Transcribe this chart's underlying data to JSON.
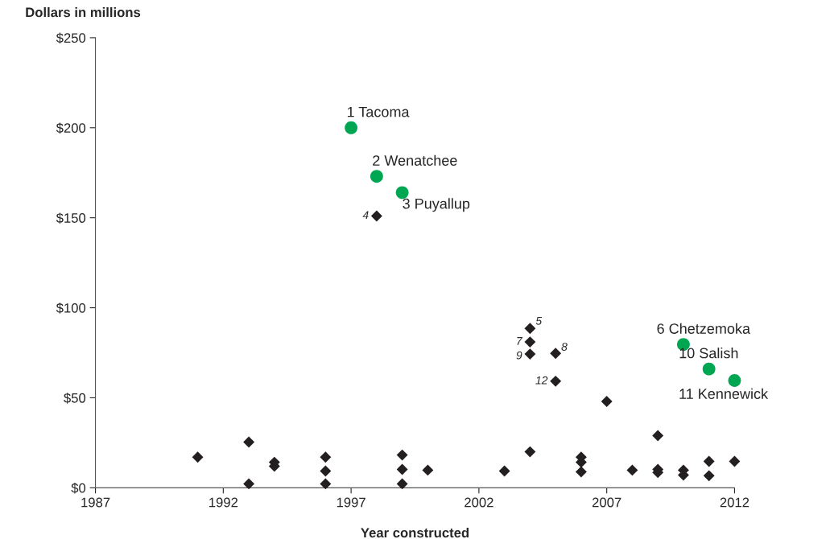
{
  "chart_data": {
    "type": "scatter",
    "xlabel": "Year constructed",
    "ylabel": "Dollars in millions",
    "xlim": [
      1987,
      2012
    ],
    "xticks": [
      1987,
      1992,
      1997,
      2002,
      2007,
      2012
    ],
    "ylim": [
      0,
      250
    ],
    "yticks": [
      {
        "value": 0,
        "label": "$0"
      },
      {
        "value": 50,
        "label": "$50"
      },
      {
        "value": 100,
        "label": "$100"
      },
      {
        "value": 150,
        "label": "$150"
      },
      {
        "value": 200,
        "label": "$200"
      },
      {
        "value": 250,
        "label": "$250"
      }
    ],
    "grid": false,
    "series": [
      {
        "color": "#00a651",
        "marker": "circle",
        "x": [
          1997,
          1998,
          1999,
          2010,
          2011,
          2012
        ],
        "values": [
          200,
          173,
          164,
          79.6,
          66,
          59.6
        ]
      },
      {
        "color": "#231f20",
        "marker": "diamond",
        "x": [
          1991,
          1993,
          1993,
          1994,
          1994,
          1996,
          1996,
          1996,
          1998,
          1999,
          1999,
          1999,
          2000,
          2003,
          2004,
          2004,
          2004,
          2004,
          2005,
          2005,
          2006,
          2006,
          2006,
          2007,
          2008,
          2009,
          2009,
          2009,
          2010,
          2010,
          2011,
          2011,
          2012
        ],
        "values": [
          17,
          25.4,
          2.2,
          14.2,
          12,
          17,
          9.3,
          2.2,
          151,
          18.2,
          10.2,
          2.2,
          9.8,
          9.3,
          88.5,
          81,
          74.3,
          20,
          74.7,
          59.2,
          17,
          14.2,
          8.9,
          48,
          9.8,
          29,
          10.2,
          8.5,
          9.8,
          7.1,
          14.7,
          6.7,
          14.7
        ]
      }
    ],
    "annotations": [
      {
        "text": "1 Tacoma",
        "x": 1997,
        "y": 200
      },
      {
        "text": "2 Wenatchee",
        "x": 1998,
        "y": 173
      },
      {
        "text": "3 Puyallup",
        "x": 1999,
        "y": 164
      },
      {
        "text": "6 Chetzemoka",
        "x": 2010,
        "y": 79.6
      },
      {
        "text": "10 Salish",
        "x": 2011,
        "y": 66
      },
      {
        "text": "11 Kennewick",
        "x": 2012,
        "y": 59.6
      },
      {
        "text": "4",
        "x": 1998,
        "y": 151
      },
      {
        "text": "5",
        "x": 2004,
        "y": 88.5
      },
      {
        "text": "7",
        "x": 2004,
        "y": 81
      },
      {
        "text": "9",
        "x": 2004,
        "y": 74.3
      },
      {
        "text": "8",
        "x": 2005,
        "y": 74.7
      },
      {
        "text": "12",
        "x": 2005,
        "y": 59.2
      }
    ]
  }
}
